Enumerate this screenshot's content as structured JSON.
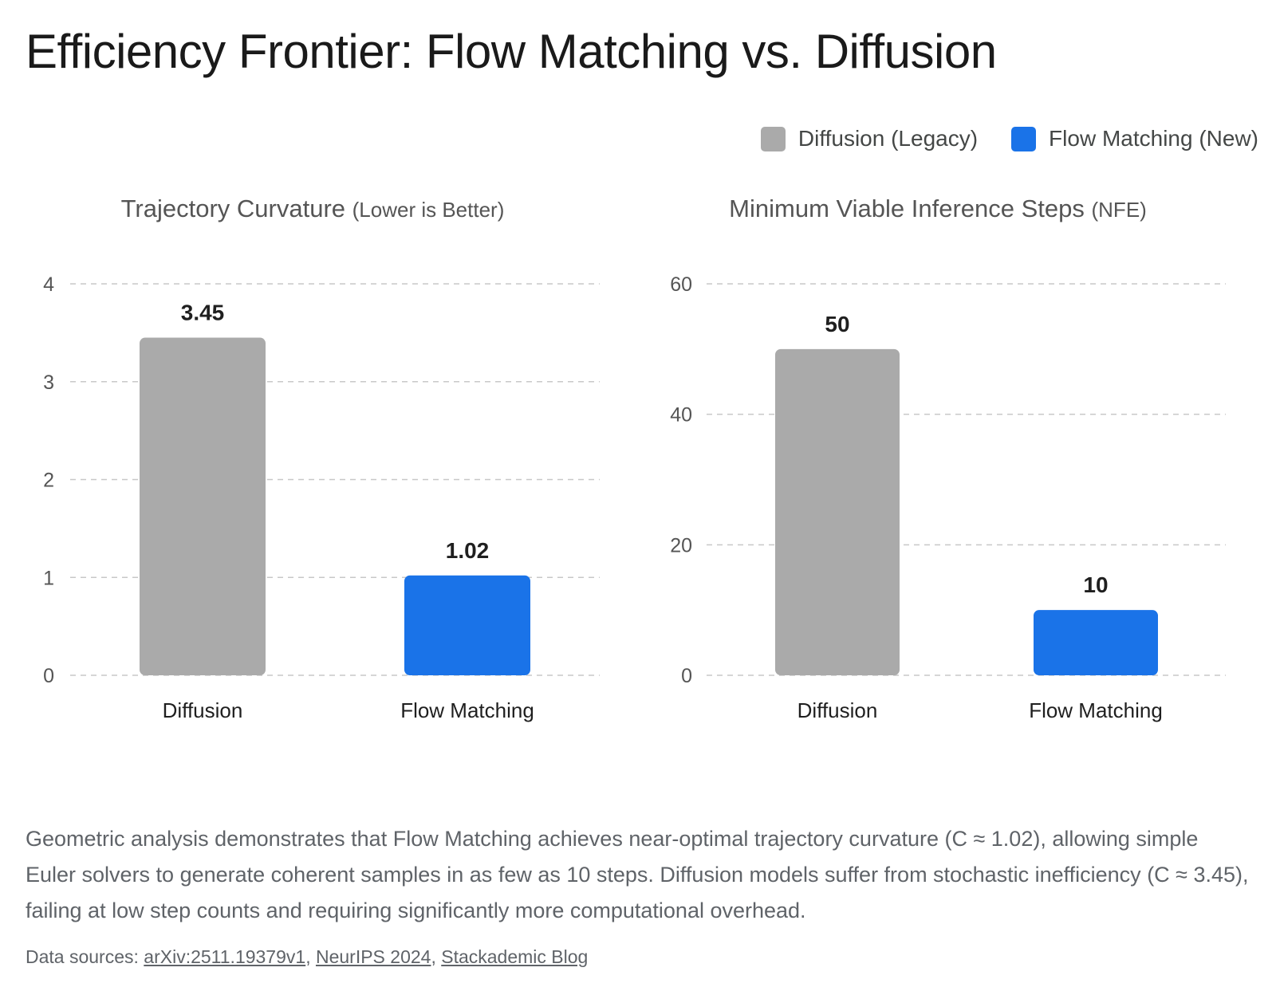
{
  "title": "Efficiency Frontier: Flow Matching vs. Diffusion",
  "legend": [
    {
      "label": "Diffusion (Legacy)",
      "color": "#aaaaaa"
    },
    {
      "label": "Flow Matching (New)",
      "color": "#1a73e8"
    }
  ],
  "chart_data": [
    {
      "type": "bar",
      "title": "Trajectory Curvature",
      "title_note": "(Lower is Better)",
      "categories": [
        "Diffusion",
        "Flow Matching"
      ],
      "values": [
        3.45,
        1.02
      ],
      "value_labels": [
        "3.45",
        "1.02"
      ],
      "colors": [
        "#aaaaaa",
        "#1a73e8"
      ],
      "ylim": [
        0,
        4
      ],
      "yticks": [
        0,
        1,
        2,
        3,
        4
      ],
      "grid": true
    },
    {
      "type": "bar",
      "title": "Minimum Viable Inference Steps",
      "title_note": "(NFE)",
      "categories": [
        "Diffusion",
        "Flow Matching"
      ],
      "values": [
        50,
        10
      ],
      "value_labels": [
        "50",
        "10"
      ],
      "colors": [
        "#aaaaaa",
        "#1a73e8"
      ],
      "ylim": [
        0,
        60
      ],
      "yticks": [
        0,
        20,
        40,
        60
      ],
      "grid": true
    }
  ],
  "summary": "Geometric analysis demonstrates that Flow Matching achieves near-optimal trajectory curvature (C ≈ 1.02), allowing simple Euler solvers to generate coherent samples in as few as 10 steps. Diffusion models suffer from stochastic inefficiency (C ≈ 3.45), failing at low step counts and requiring significantly more computational overhead.",
  "sources": {
    "prefix": "Data sources: ",
    "links": [
      "arXiv:2511.19379v1",
      "NeurIPS 2024",
      "Stackademic Blog"
    ]
  }
}
